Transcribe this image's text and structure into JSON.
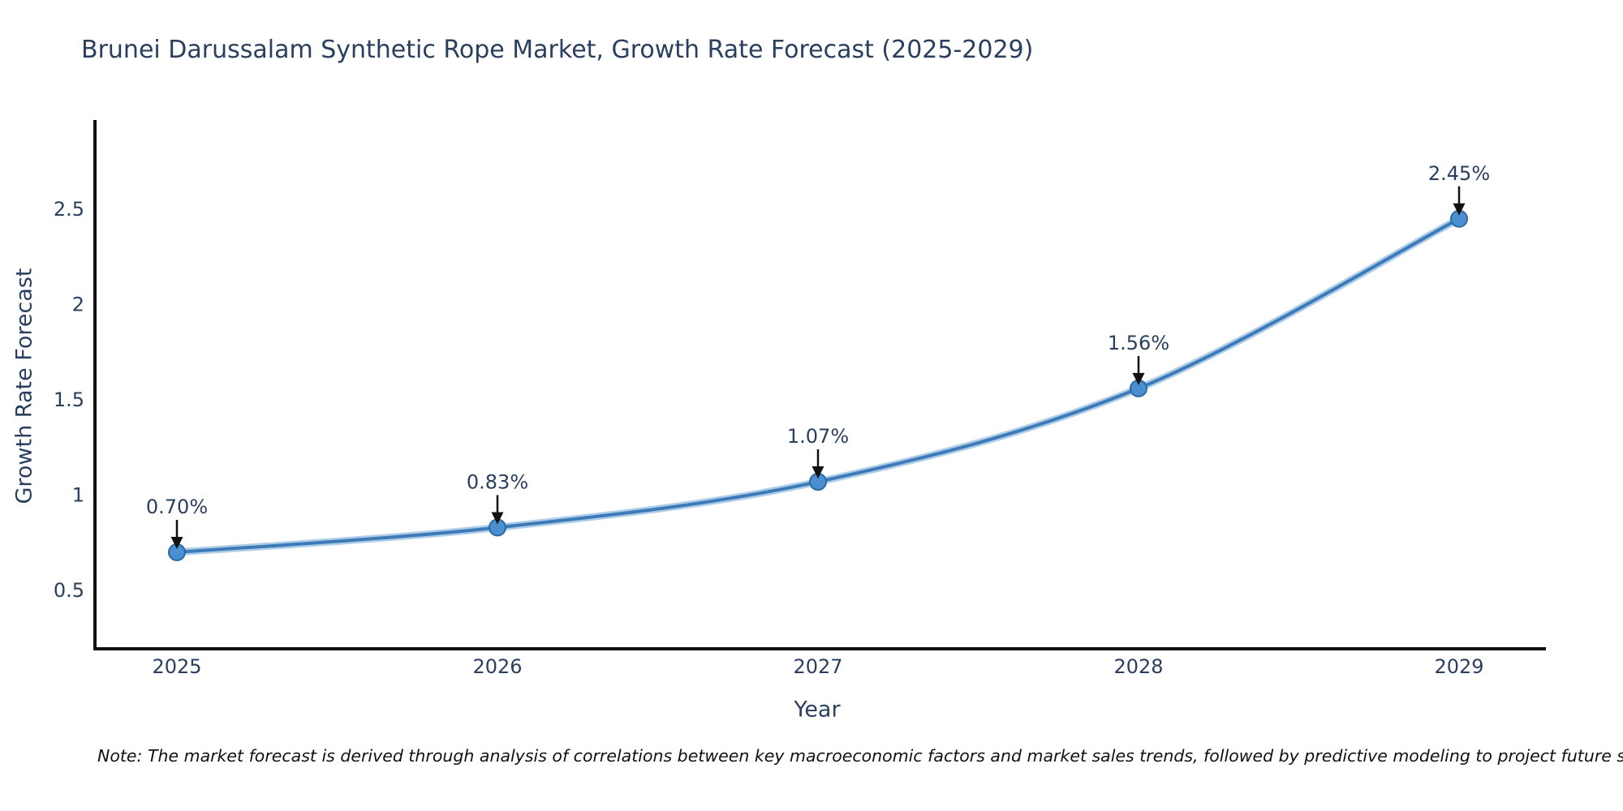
{
  "note": "Note: The market forecast is derived through analysis of correlations between key macroeconomic factors and market sales trends, followed by predictive modeling to project future sales",
  "chart_data": {
    "type": "line",
    "line_shape": "spline",
    "title": "Brunei Darussalam Synthetic Rope Market, Growth Rate Forecast (2025-2029)",
    "xlabel": "Year",
    "ylabel": "Growth Rate Forecast",
    "categories": [
      "2025",
      "2026",
      "2027",
      "2028",
      "2029"
    ],
    "values": [
      0.7,
      0.83,
      1.07,
      1.56,
      2.45
    ],
    "point_labels": [
      "0.70%",
      "0.83%",
      "1.07%",
      "1.56%",
      "2.45%"
    ],
    "ytick_labels": [
      "0.5",
      "1",
      "1.5",
      "2",
      "2.5"
    ],
    "ytick_values": [
      0.5,
      1,
      1.5,
      2,
      2.5
    ],
    "ylim": [
      0.19,
      2.96
    ],
    "grid": false,
    "legend_position": "none",
    "annotation_style": "black-down-arrow",
    "colors": {
      "line": "#3d7ab8",
      "line_halo": "#aecde9",
      "marker_fill": "#4a8fd0",
      "marker_edge": "#2a6aa5",
      "arrow": "#111111",
      "axis": "#111111",
      "text": "#2a3f5f",
      "note_text": "#111111",
      "background": "#ffffff"
    }
  }
}
